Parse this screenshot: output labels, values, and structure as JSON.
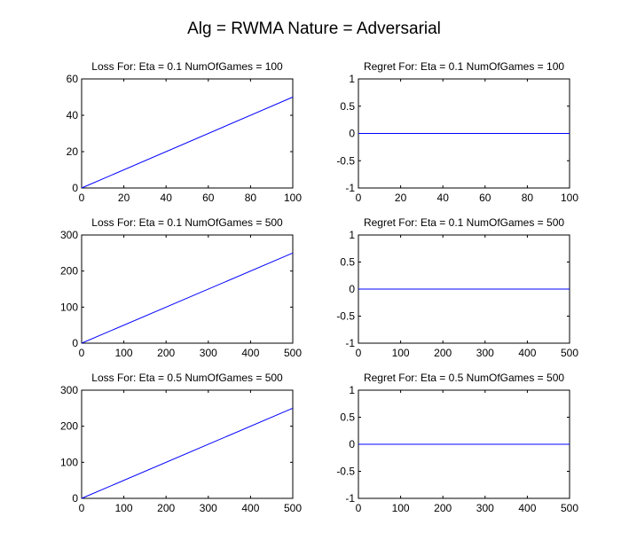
{
  "figure_title": "Alg = RWMA Nature = Adversarial",
  "colors": {
    "series": "#0000ff",
    "axes": "#000000",
    "background": "#ffffff"
  },
  "chart_data": [
    {
      "type": "line",
      "title": "Loss For: Eta = 0.1 NumOfGames = 100",
      "xlim": [
        0,
        100
      ],
      "ylim": [
        0,
        60
      ],
      "xticks": [
        0,
        20,
        40,
        60,
        80,
        100
      ],
      "yticks": [
        0,
        20,
        40,
        60
      ],
      "series": [
        {
          "x": [
            0,
            100
          ],
          "y": [
            0,
            50
          ]
        }
      ]
    },
    {
      "type": "line",
      "title": "Regret For: Eta = 0.1 NumOfGames = 100",
      "xlim": [
        0,
        100
      ],
      "ylim": [
        -1,
        1
      ],
      "xticks": [
        0,
        20,
        40,
        60,
        80,
        100
      ],
      "yticks": [
        -1,
        -0.5,
        0,
        0.5,
        1
      ],
      "series": [
        {
          "x": [
            0,
            100
          ],
          "y": [
            0,
            0
          ]
        }
      ]
    },
    {
      "type": "line",
      "title": "Loss For: Eta = 0.1 NumOfGames = 500",
      "xlim": [
        0,
        500
      ],
      "ylim": [
        0,
        300
      ],
      "xticks": [
        0,
        100,
        200,
        300,
        400,
        500
      ],
      "yticks": [
        0,
        100,
        200,
        300
      ],
      "series": [
        {
          "x": [
            0,
            500
          ],
          "y": [
            0,
            250
          ]
        }
      ]
    },
    {
      "type": "line",
      "title": "Regret For: Eta = 0.1 NumOfGames = 500",
      "xlim": [
        0,
        500
      ],
      "ylim": [
        -1,
        1
      ],
      "xticks": [
        0,
        100,
        200,
        300,
        400,
        500
      ],
      "yticks": [
        -1,
        -0.5,
        0,
        0.5,
        1
      ],
      "series": [
        {
          "x": [
            0,
            500
          ],
          "y": [
            0,
            0
          ]
        }
      ]
    },
    {
      "type": "line",
      "title": "Loss For: Eta = 0.5 NumOfGames = 500",
      "xlim": [
        0,
        500
      ],
      "ylim": [
        0,
        300
      ],
      "xticks": [
        0,
        100,
        200,
        300,
        400,
        500
      ],
      "yticks": [
        0,
        100,
        200,
        300
      ],
      "series": [
        {
          "x": [
            0,
            500
          ],
          "y": [
            0,
            250
          ]
        }
      ]
    },
    {
      "type": "line",
      "title": "Regret For: Eta = 0.5 NumOfGames = 500",
      "xlim": [
        0,
        500
      ],
      "ylim": [
        -1,
        1
      ],
      "xticks": [
        0,
        100,
        200,
        300,
        400,
        500
      ],
      "yticks": [
        -1,
        -0.5,
        0,
        0.5,
        1
      ],
      "series": [
        {
          "x": [
            0,
            500
          ],
          "y": [
            0,
            0
          ]
        }
      ]
    }
  ]
}
